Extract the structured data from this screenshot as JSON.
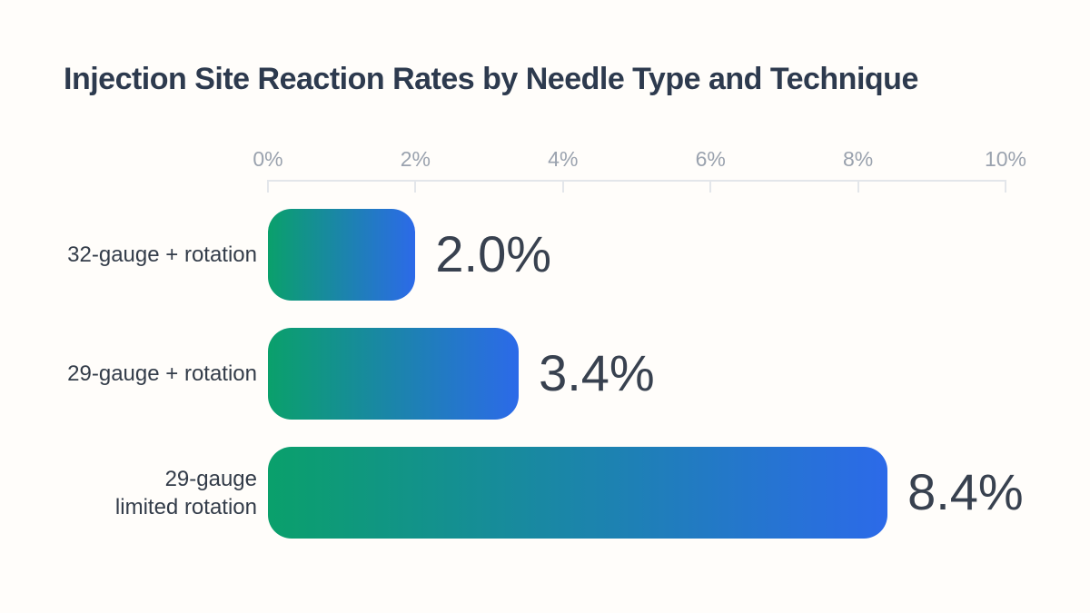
{
  "title": "Injection Site Reaction Rates by Needle Type and Technique",
  "colors": {
    "background": "#fffdfa",
    "title_text": "#2d3a4e",
    "axis_line": "#e3e6ea",
    "tick_label": "#9aa2ae",
    "category_label": "#333c49",
    "value_label": "#38414f",
    "bar_gradient_start": "#0aa06b",
    "bar_gradient_end": "#2c6ae9"
  },
  "chart_data": {
    "type": "bar",
    "orientation": "horizontal",
    "title": "Injection Site Reaction Rates by Needle Type and Technique",
    "categories": [
      "32-gauge + rotation",
      "29-gauge + rotation",
      "29-gauge\nlimited rotation"
    ],
    "values": [
      2.0,
      3.4,
      8.4
    ],
    "value_labels": [
      "2.0%",
      "3.4%",
      "8.4%"
    ],
    "unit": "%",
    "x_tick_labels": [
      "0%",
      "2%",
      "4%",
      "6%",
      "8%",
      "10%"
    ],
    "x_tick_values": [
      0,
      2,
      4,
      6,
      8,
      10
    ],
    "xlim": [
      0,
      10
    ],
    "xlabel": "",
    "ylabel": "",
    "grid": false,
    "legend": false,
    "bar_gradient": [
      "#0aa06b",
      "#2c6ae9"
    ]
  }
}
